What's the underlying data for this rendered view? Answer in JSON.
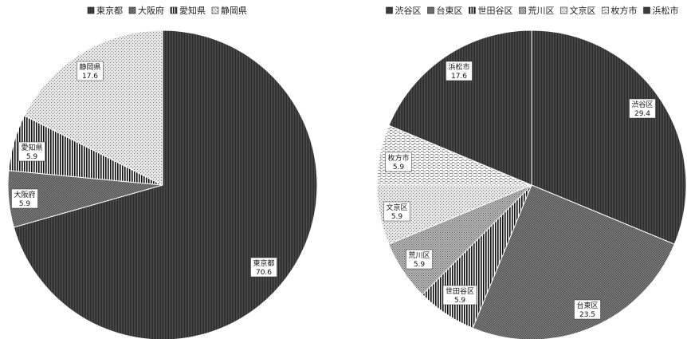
{
  "chart_data": [
    {
      "type": "pie",
      "legend_position": "top",
      "slices": [
        {
          "label": "東京都",
          "value": 70.6,
          "value_label": "70.6",
          "pattern": "vlines-dense"
        },
        {
          "label": "大阪府",
          "value": 5.9,
          "value_label": "5.9",
          "pattern": "diag-medium"
        },
        {
          "label": "愛知県",
          "value": 5.9,
          "value_label": "5.9",
          "pattern": "vlines-wide"
        },
        {
          "label": "静岡県",
          "value": 17.6,
          "value_label": "17.6",
          "pattern": "dots-light"
        }
      ]
    },
    {
      "type": "pie",
      "legend_position": "top",
      "slices": [
        {
          "label": "渋谷区",
          "value": 29.4,
          "value_label": "29.4",
          "pattern": "vlines-dense"
        },
        {
          "label": "台東区",
          "value": 23.5,
          "value_label": "23.5",
          "pattern": "diag-medium"
        },
        {
          "label": "世田谷区",
          "value": 5.9,
          "value_label": "5.9",
          "pattern": "vlines-wide"
        },
        {
          "label": "荒川区",
          "value": 5.9,
          "value_label": "5.9",
          "pattern": "dots-medium"
        },
        {
          "label": "文京区",
          "value": 5.9,
          "value_label": "5.9",
          "pattern": "dots-light"
        },
        {
          "label": "枚方市",
          "value": 5.9,
          "value_label": "5.9",
          "pattern": "hlines-dashed"
        },
        {
          "label": "浜松市",
          "value": 17.6,
          "value_label": "17.6",
          "pattern": "vlines-dense"
        }
      ]
    }
  ]
}
